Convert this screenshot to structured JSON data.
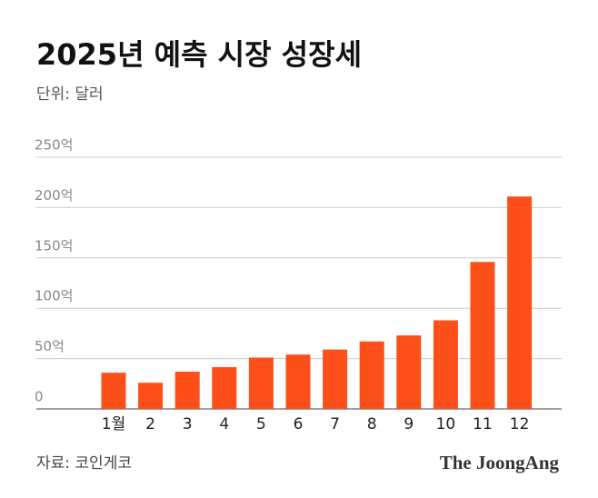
{
  "chart_data": {
    "type": "bar",
    "title": "2025년 예측 시장 성장세",
    "subtitle": "단위: 달러",
    "categories": [
      "1월",
      "2",
      "3",
      "4",
      "5",
      "6",
      "7",
      "8",
      "9",
      "10",
      "11",
      "12"
    ],
    "values": [
      36,
      26,
      37,
      41.5,
      51,
      54,
      59,
      67,
      73,
      88,
      146,
      211
    ],
    "color": "#fc4f1a",
    "ylim": [
      0,
      250
    ],
    "yticks": [
      0,
      {
        "value": 50,
        "label": "50억"
      },
      {
        "value": 100,
        "label": "100억"
      },
      {
        "value": 150,
        "label": "150억"
      },
      {
        "value": 200,
        "label": "200억"
      },
      {
        "value": 250,
        "label": "250억"
      }
    ],
    "grid": true,
    "source": "자료: 코인게코",
    "brand": "The JoongAng"
  }
}
